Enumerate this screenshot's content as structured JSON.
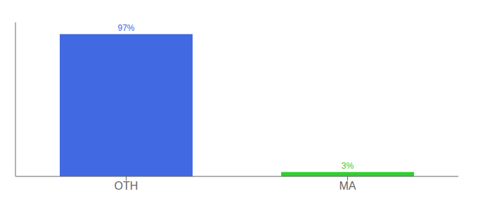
{
  "chart_data": {
    "type": "bar",
    "categories": [
      "OTH",
      "MA"
    ],
    "values": [
      97,
      3
    ],
    "value_labels": [
      "97%",
      "3%"
    ],
    "colors": [
      "#4169E1",
      "#32CD32"
    ],
    "ylim": [
      0,
      105
    ],
    "data_labels": true,
    "tick_labels": "x",
    "grid": false
  }
}
